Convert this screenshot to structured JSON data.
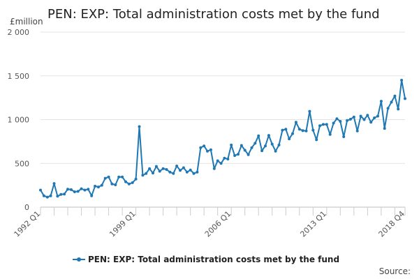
{
  "chart_data": {
    "type": "line",
    "title": "PEN: EXP: Total administration costs met by the fund",
    "ylabel": "£million",
    "xlabel": "",
    "ylim": [
      0,
      2000
    ],
    "y_ticks": [
      0,
      500,
      1000,
      1500,
      2000
    ],
    "y_tick_labels": [
      "0",
      "500",
      "1 000",
      "1 500",
      "2 000"
    ],
    "x_tick_labels": [
      {
        "label": "1992 Q1",
        "index": 0
      },
      {
        "label": "1999 Q1",
        "index": 28
      },
      {
        "label": "2006 Q1",
        "index": 56
      },
      {
        "label": "2013 Q1",
        "index": 84
      },
      {
        "label": "2018 Q4",
        "index": 107
      }
    ],
    "x_start": "1992 Q1",
    "x_end": "2018 Q4",
    "grid": true,
    "legend": "bottom-center",
    "color": "#1f78b4",
    "series": [
      {
        "name": "PEN: EXP: Total administration costs met by the fund",
        "values": [
          195,
          130,
          115,
          130,
          270,
          125,
          145,
          150,
          205,
          200,
          175,
          180,
          210,
          195,
          205,
          130,
          240,
          230,
          250,
          330,
          345,
          265,
          255,
          345,
          345,
          290,
          265,
          280,
          320,
          920,
          365,
          385,
          440,
          390,
          465,
          410,
          440,
          430,
          400,
          385,
          470,
          420,
          450,
          400,
          425,
          385,
          400,
          680,
          700,
          640,
          655,
          440,
          530,
          500,
          560,
          550,
          710,
          590,
          605,
          705,
          650,
          600,
          680,
          730,
          815,
          645,
          700,
          820,
          720,
          640,
          710,
          880,
          890,
          780,
          840,
          970,
          890,
          875,
          870,
          1095,
          880,
          770,
          930,
          945,
          945,
          830,
          960,
          1010,
          980,
          805,
          990,
          1005,
          1030,
          870,
          1040,
          1000,
          1050,
          970,
          1020,
          1040,
          1210,
          900,
          1130,
          1200,
          1270,
          1120,
          1450,
          1240
        ]
      }
    ]
  },
  "legend": {
    "label": "PEN: EXP: Total administration costs met by the fund"
  },
  "source": {
    "label": "Source:"
  }
}
